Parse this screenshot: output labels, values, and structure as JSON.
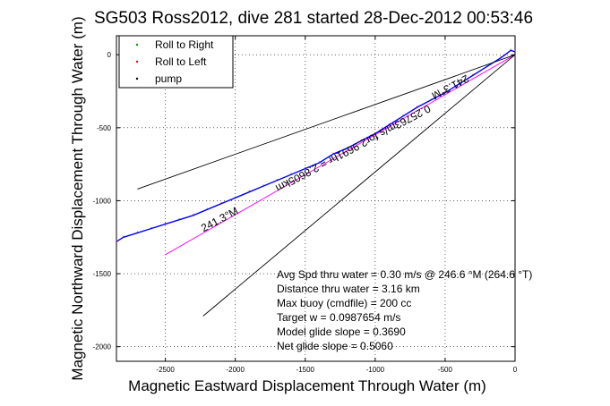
{
  "chart_data": {
    "type": "line",
    "title": "SG503 Ross2012, dive 281 started 28-Dec-2012 00:53:46",
    "xlabel": "Magnetic Eastward Displacement Through Water (m)",
    "ylabel": "Magnetic Northward Displacement Through Water (m)",
    "xlim": [
      -2850,
      0
    ],
    "ylim": [
      -2100,
      130
    ],
    "xticks": [
      -2500,
      -2000,
      -1500,
      -1000,
      -500,
      0
    ],
    "yticks": [
      0,
      -500,
      -1000,
      -1500,
      -2000
    ],
    "grid": true,
    "legend": {
      "placement": "top-left",
      "entries": [
        {
          "label": "Roll to Right",
          "color": "#00a000",
          "marker": "dot"
        },
        {
          "label": "Roll to Left",
          "color": "#ff0000",
          "marker": "dot"
        },
        {
          "label": "pump",
          "color": "#000000",
          "marker": "dot"
        }
      ]
    },
    "series": [
      {
        "style": "track",
        "color": "#0000ff",
        "x": [
          0,
          -30,
          -100,
          -200,
          -300,
          -400,
          -500,
          -600,
          -700,
          -800,
          -900,
          -1000,
          -1100,
          -1200,
          -1300,
          -1400,
          -1500,
          -1600,
          -1700,
          -1800,
          -1900,
          -2000,
          -2100,
          -2200,
          -2300,
          -2400,
          -2500,
          -2600,
          -2700,
          -2800,
          -2850
        ],
        "y": [
          20,
          30,
          -20,
          -80,
          -140,
          -200,
          -260,
          -310,
          -360,
          -420,
          -480,
          -540,
          -590,
          -640,
          -680,
          -740,
          -780,
          -820,
          -860,
          -900,
          -940,
          -980,
          -1020,
          -1060,
          -1100,
          -1130,
          -1160,
          -1190,
          -1220,
          -1250,
          -1280
        ]
      },
      {
        "style": "thin",
        "color": "#ff00ff",
        "x": [
          0,
          -2500
        ],
        "y": [
          0,
          -1370
        ]
      },
      {
        "style": "thin",
        "color": "#000000",
        "x": [
          0,
          -2700
        ],
        "y": [
          0,
          -920
        ]
      },
      {
        "style": "thin",
        "color": "#000000",
        "x": [
          0,
          -2230
        ],
        "y": [
          0,
          -1790
        ]
      }
    ],
    "annotations": [
      {
        "text": "241.3°M",
        "x": -475,
        "y": -200,
        "rotate": 152
      },
      {
        "text": "0.25763m/s for2.9691hr = 2.8605km",
        "x": -1170,
        "y": -620,
        "rotate": 152
      },
      {
        "text": "241.3°M",
        "x": -2100,
        "y": -1150,
        "rotate": -28
      }
    ],
    "stats": [
      "Avg Spd thru water =  0.30 m/s @ 246.6   °M (264.6 °T)",
      "Distance thru water =  3.16 km",
      "Max buoy (cmdfile) = 200 cc",
      "Target w = 0.0987654 m/s",
      "Model glide slope = 0.3690",
      "Net glide slope = 0.5060"
    ]
  }
}
